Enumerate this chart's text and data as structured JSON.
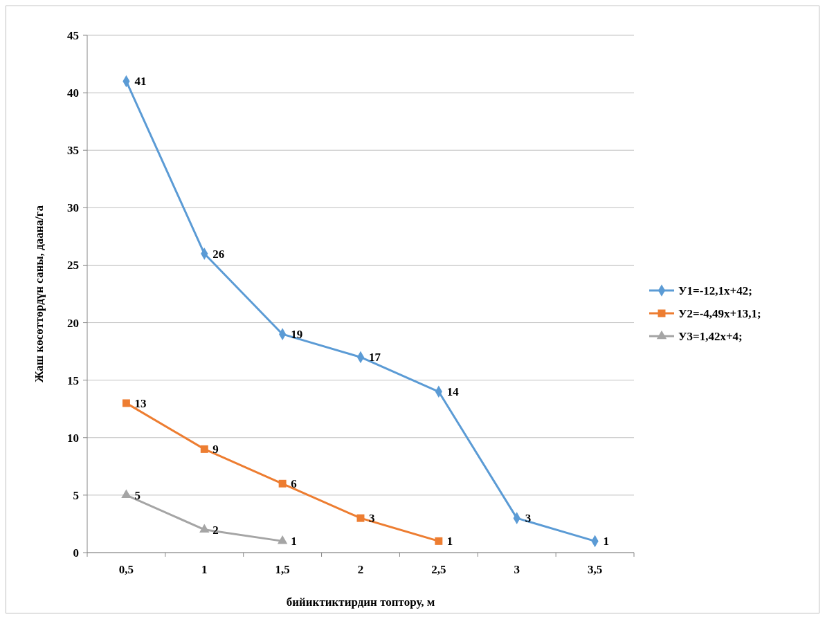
{
  "chart_data": {
    "type": "line",
    "xlabel": "бийиктиктирдин топтору, м",
    "ylabel": "Жаш көсөттөрдүн саны, даана/га",
    "categories": [
      "0,5",
      "1",
      "1,5",
      "2",
      "2,5",
      "3",
      "3,5"
    ],
    "ylim": [
      0,
      45
    ],
    "yticks": [
      0,
      5,
      10,
      15,
      20,
      25,
      30,
      35,
      40,
      45
    ],
    "grid": "y",
    "legend": "right",
    "data_labels": true,
    "series": [
      {
        "name": "У1=-12,1x+42;",
        "color": "#5b9bd5",
        "marker": "diamond",
        "values": [
          41,
          26,
          19,
          17,
          14,
          3,
          1
        ]
      },
      {
        "name": "У2=-4,49x+13,1;",
        "color": "#ed7d31",
        "marker": "square",
        "values": [
          13,
          9,
          6,
          3,
          1,
          null,
          null
        ]
      },
      {
        "name": "У3=1,42x+4;",
        "color": "#a5a5a5",
        "marker": "triangle",
        "values": [
          5,
          2,
          1,
          null,
          null,
          null,
          null
        ]
      }
    ]
  }
}
